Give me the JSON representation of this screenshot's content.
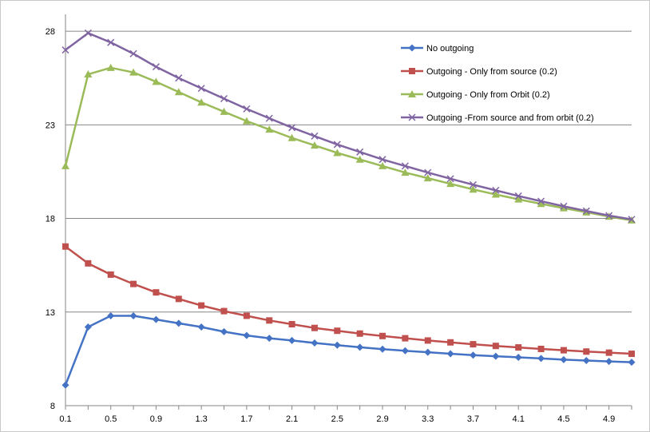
{
  "chart_data": {
    "type": "line",
    "title": "",
    "xlabel": "",
    "ylabel": "",
    "x": [
      0.1,
      0.3,
      0.5,
      0.7,
      0.9,
      1.1,
      1.3,
      1.5,
      1.7,
      1.9,
      2.1,
      2.3,
      2.5,
      2.7,
      2.9,
      3.1,
      3.3,
      3.5,
      3.7,
      3.9,
      4.1,
      4.3,
      4.5,
      4.7,
      4.9,
      5.1
    ],
    "xticks": [
      "0.1",
      "0.5",
      "0.9",
      "1.3",
      "1.7",
      "2.1",
      "2.5",
      "2.9",
      "3.3",
      "3.7",
      "4.1",
      "4.5",
      "4.9"
    ],
    "yticks": [
      "8",
      "13",
      "18",
      "23",
      "28"
    ],
    "ylim": [
      8,
      28.9
    ],
    "grid": "horizontal",
    "legend_position": "top-right",
    "series": [
      {
        "name": "No outgoing",
        "color": "#4472C4",
        "marker": "diamond",
        "values": [
          9.1,
          12.2,
          12.8,
          12.8,
          12.6,
          12.4,
          12.2,
          11.95,
          11.75,
          11.6,
          11.48,
          11.35,
          11.23,
          11.12,
          11.02,
          10.93,
          10.85,
          10.77,
          10.7,
          10.64,
          10.58,
          10.52,
          10.46,
          10.41,
          10.36,
          10.32
        ]
      },
      {
        "name": "Outgoing - Only from source (0.2)",
        "color": "#C0504D",
        "marker": "square",
        "values": [
          16.5,
          15.6,
          15.0,
          14.5,
          14.05,
          13.7,
          13.35,
          13.05,
          12.8,
          12.55,
          12.35,
          12.15,
          12.0,
          11.85,
          11.72,
          11.6,
          11.48,
          11.38,
          11.28,
          11.19,
          11.11,
          11.03,
          10.96,
          10.89,
          10.83,
          10.77
        ]
      },
      {
        "name": "Outgoing - Only from Orbit (0.2)",
        "color": "#9BBB59",
        "marker": "triangle",
        "values": [
          20.8,
          25.7,
          26.05,
          25.8,
          25.3,
          24.75,
          24.2,
          23.7,
          23.2,
          22.75,
          22.3,
          21.9,
          21.5,
          21.15,
          20.8,
          20.45,
          20.15,
          19.85,
          19.55,
          19.28,
          19.02,
          18.78,
          18.55,
          18.33,
          18.1,
          17.9
        ]
      },
      {
        "name": "Outgoing -From source and from orbit (0.2)",
        "color": "#8064A2",
        "marker": "x",
        "values": [
          27.0,
          27.9,
          27.4,
          26.8,
          26.1,
          25.5,
          24.95,
          24.4,
          23.85,
          23.35,
          22.85,
          22.4,
          21.95,
          21.55,
          21.15,
          20.8,
          20.45,
          20.12,
          19.8,
          19.5,
          19.2,
          18.92,
          18.65,
          18.4,
          18.15,
          17.95
        ]
      }
    ]
  }
}
